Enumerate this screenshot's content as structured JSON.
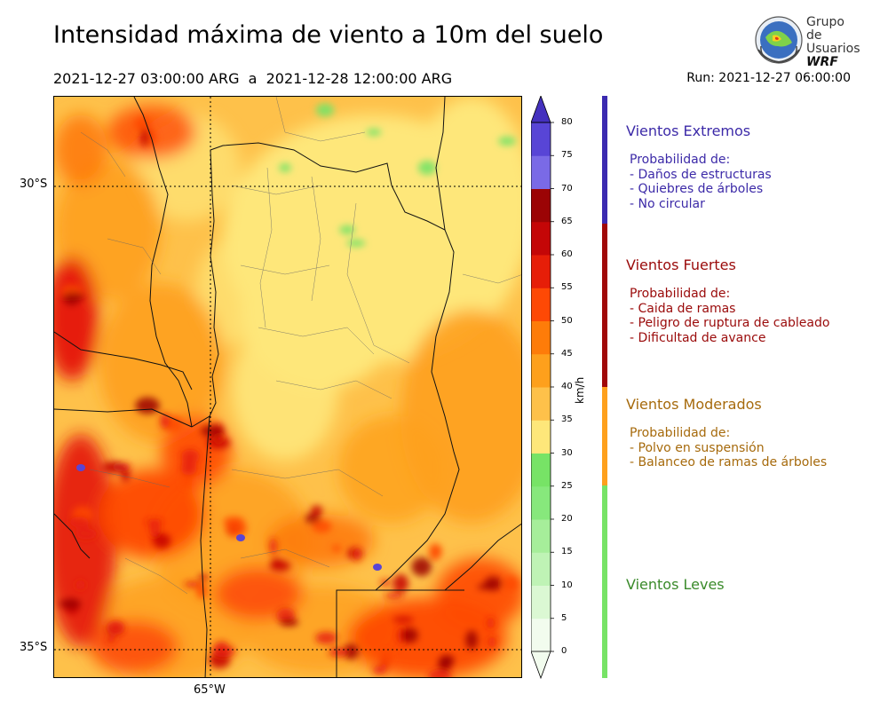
{
  "header": {
    "title": "Intensidad máxima de viento a 10m del suelo",
    "period": "2021-12-27 03:00:00 ARG  a  2021-12-28 12:00:00 ARG",
    "run": "Run: 2021-12-27 06:00:00"
  },
  "logo": {
    "line1": "Grupo de",
    "line2": "Usuarios",
    "line3": "WRF"
  },
  "map": {
    "lat_labels": [
      "30°S",
      "35°S"
    ],
    "lon_labels": [
      "65°W"
    ]
  },
  "colorbar": {
    "unit": "km/h",
    "ticks": [
      "0",
      "5",
      "10",
      "15",
      "20",
      "25",
      "30",
      "35",
      "40",
      "45",
      "50",
      "55",
      "60",
      "65",
      "70",
      "75",
      "80"
    ],
    "colors": [
      "#f2fcee",
      "#dbf8d3",
      "#bff3b5",
      "#a6ee9a",
      "#87e87c",
      "#77e366",
      "#fee77a",
      "#fec14a",
      "#fea01c",
      "#fe7c09",
      "#fe4905",
      "#e61e08",
      "#c40607",
      "#9b0405",
      "#7a6ae6",
      "#5845d6",
      "#4431be"
    ]
  },
  "categories": [
    {
      "title": "Vientos Extremos",
      "color": "#3c2aa8",
      "bar_color": "#3b2ab0",
      "desc": [
        "Probabilidad de:",
        "- Daños de estructuras",
        "- Quiebres de árboles",
        "- No circular"
      ]
    },
    {
      "title": "Vientos Fuertes",
      "color": "#9a0a0a",
      "bar_color": "#a00808",
      "desc": [
        "Probabilidad de:",
        "- Caida de ramas",
        "- Peligro de ruptura de cableado",
        "- Dificultad de avance"
      ]
    },
    {
      "title": "Vientos Moderados",
      "color": "#a66a0c",
      "bar_color": "#fea01c",
      "desc": [
        "Probabilidad de:",
        "- Polvo en suspensión",
        "- Balanceo de ramas de árboles"
      ]
    },
    {
      "title": "Vientos Leves",
      "color": "#3a8a2a",
      "bar_color": "#77e366",
      "desc": []
    }
  ]
}
